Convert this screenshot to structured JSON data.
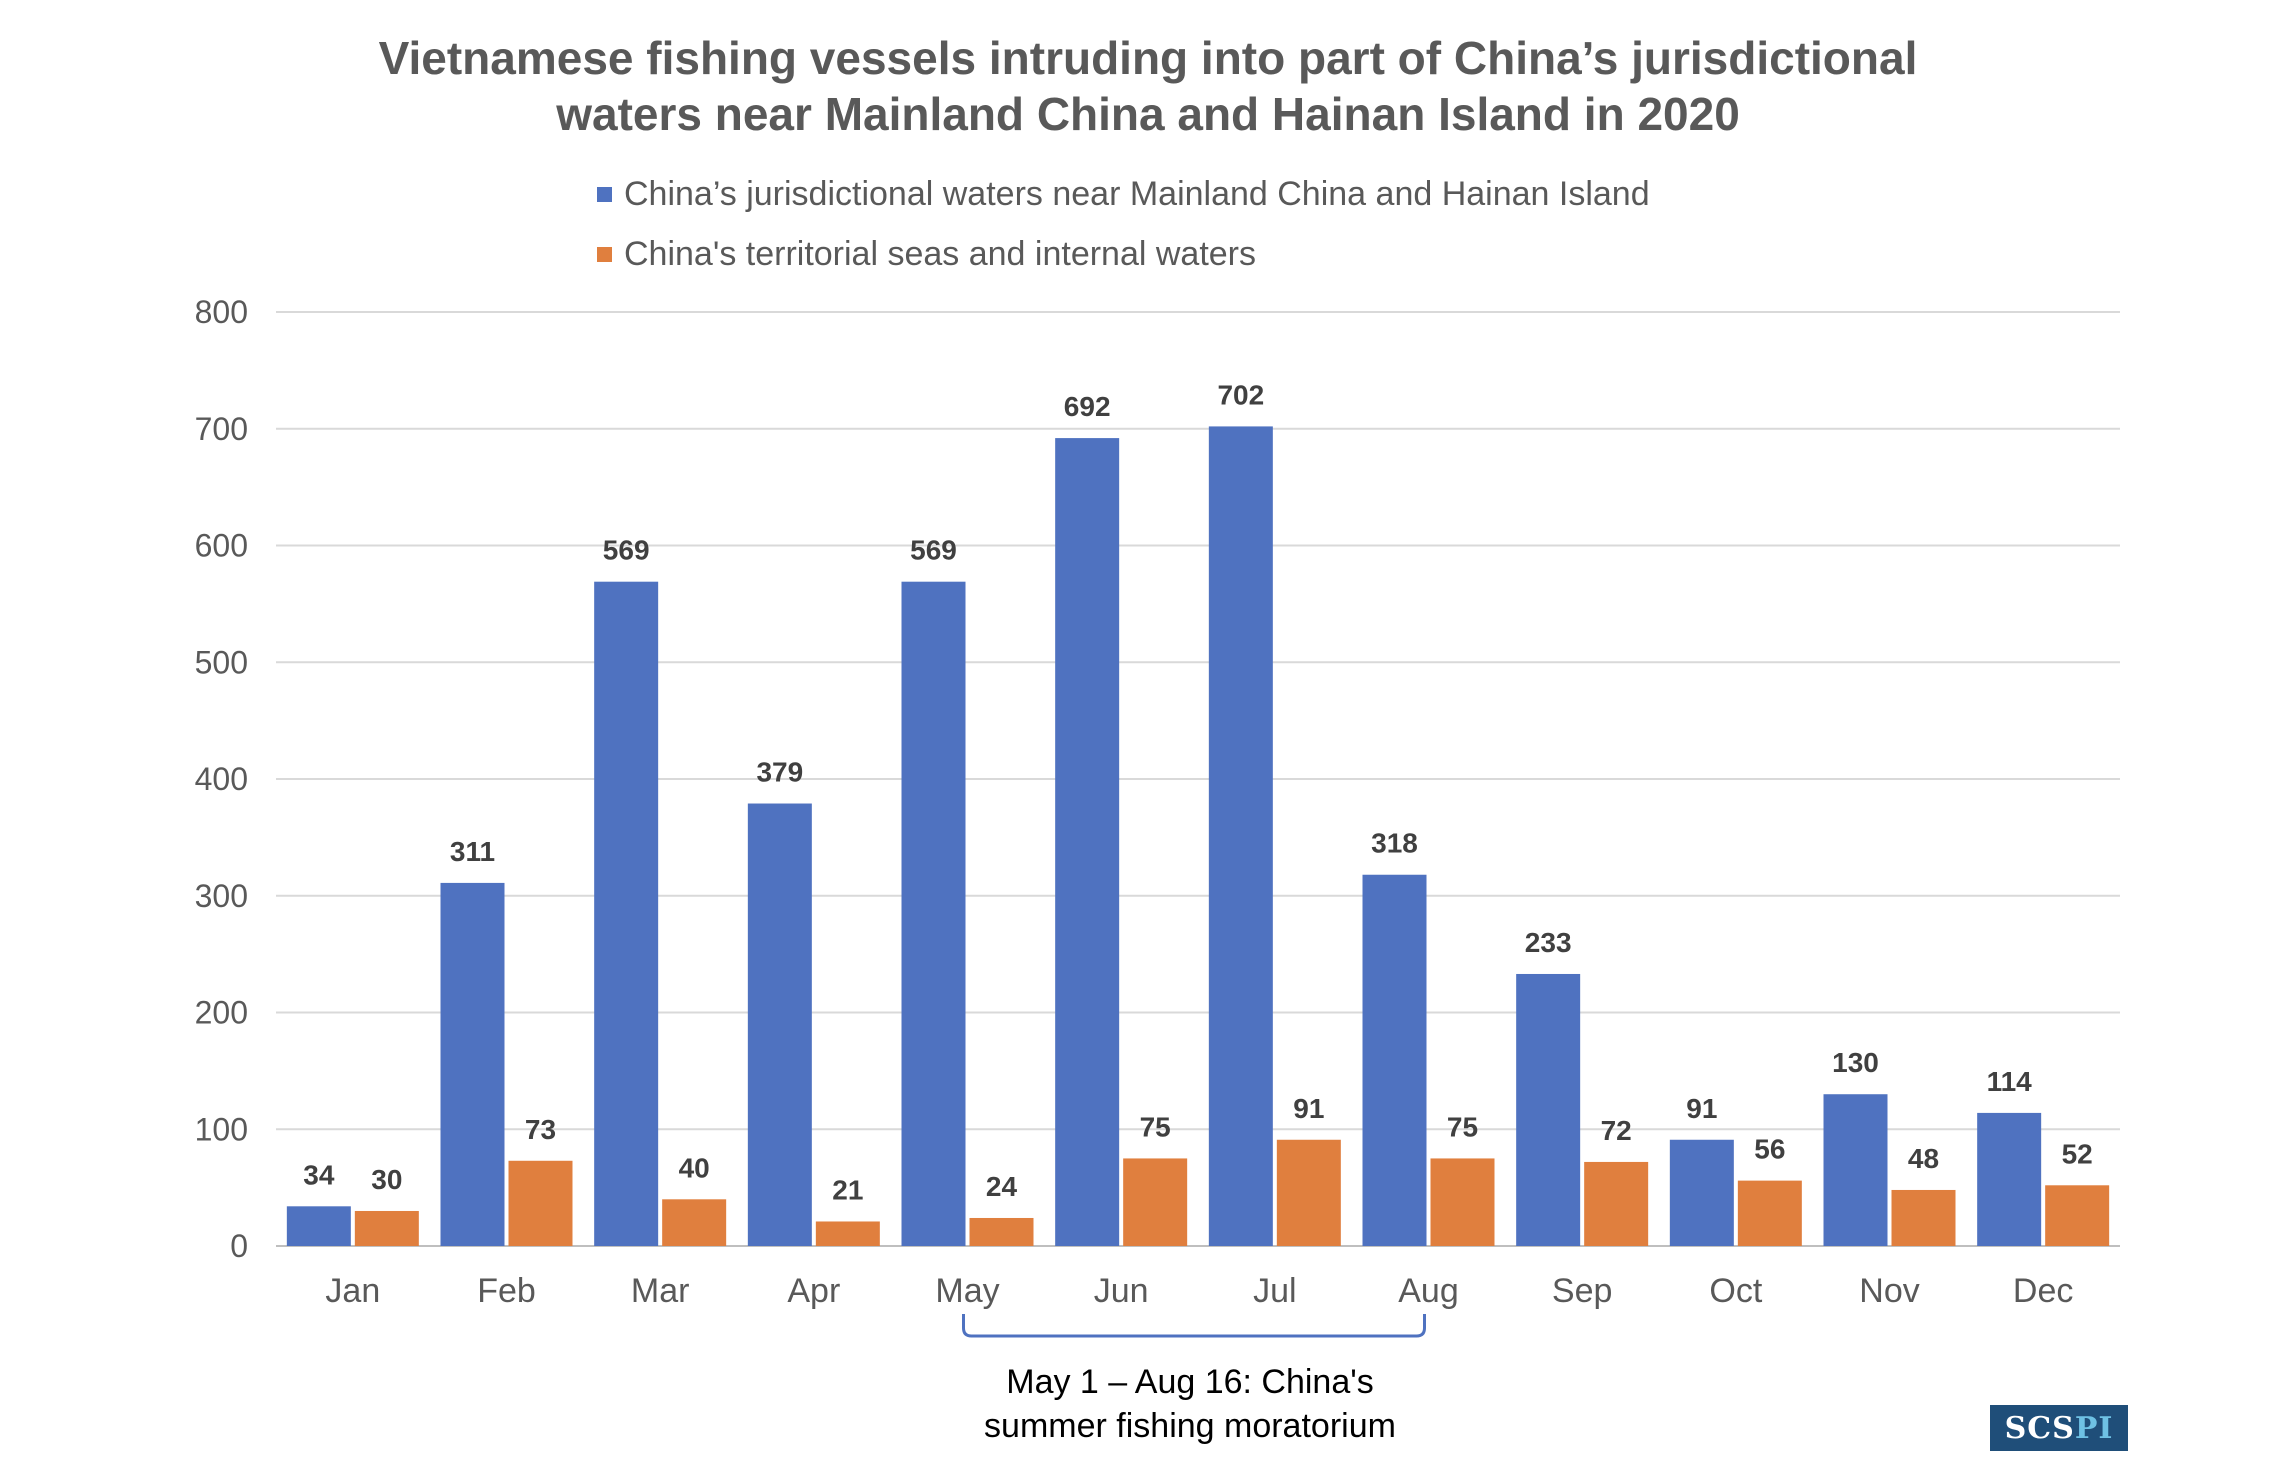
{
  "chart_data": {
    "type": "bar",
    "title_lines": [
      "Vietnamese fishing vessels intruding into part of China’s jurisdictional",
      "waters near Mainland China and Hainan Island in 2020"
    ],
    "categories": [
      "Jan",
      "Feb",
      "Mar",
      "Apr",
      "May",
      "Jun",
      "Jul",
      "Aug",
      "Sep",
      "Oct",
      "Nov",
      "Dec"
    ],
    "series": [
      {
        "name": "China’s jurisdictional waters near Mainland China and Hainan Island",
        "color": "#4f72c0",
        "values": [
          34,
          311,
          569,
          379,
          569,
          692,
          702,
          318,
          233,
          91,
          130,
          114
        ]
      },
      {
        "name": "China's territorial seas and internal waters",
        "color": "#e07f3e",
        "values": [
          30,
          73,
          40,
          21,
          24,
          75,
          91,
          75,
          72,
          56,
          48,
          52
        ]
      }
    ],
    "ylim": [
      0,
      800
    ],
    "yticks": [
      0,
      100,
      200,
      300,
      400,
      500,
      600,
      700,
      800
    ],
    "grid": true,
    "legend_position": "top",
    "data_labels": true,
    "annotation": {
      "lines": [
        "May 1 – Aug 16: China's",
        "summer fishing moratorium"
      ],
      "span_categories": [
        "May",
        "Aug"
      ]
    }
  },
  "logo": {
    "part_a": "SCS",
    "part_b": "PI"
  }
}
